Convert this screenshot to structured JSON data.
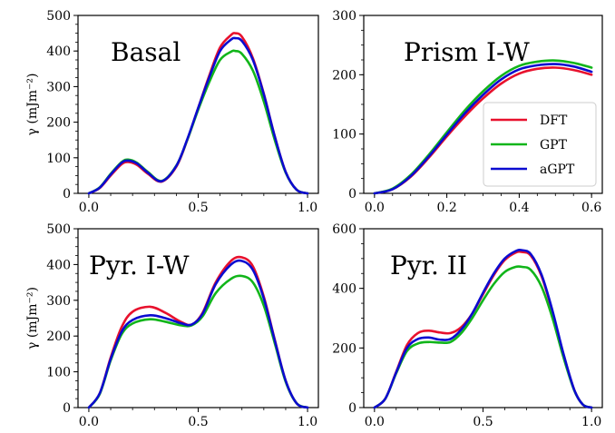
{
  "chart_data": [
    {
      "type": "line",
      "title": "Basal",
      "ylabel": "γ (mJm⁻²)",
      "xlim": [
        0,
        1.0
      ],
      "ylim": [
        0,
        500
      ],
      "xticks": [
        "0.0",
        "0.5",
        "1.0"
      ],
      "yticks": [
        "0",
        "100",
        "200",
        "300",
        "400",
        "500"
      ],
      "series": [
        {
          "name": "DFT",
          "color": "#e8112d",
          "x": [
            0,
            0.05,
            0.1,
            0.15,
            0.18,
            0.22,
            0.27,
            0.333,
            0.4,
            0.45,
            0.5,
            0.55,
            0.6,
            0.65,
            0.67,
            0.7,
            0.75,
            0.8,
            0.85,
            0.9,
            0.95,
            1.0
          ],
          "y": [
            0,
            15,
            50,
            82,
            88,
            80,
            55,
            33,
            75,
            150,
            240,
            330,
            410,
            445,
            450,
            440,
            380,
            280,
            160,
            60,
            10,
            0
          ]
        },
        {
          "name": "GPT",
          "color": "#11b51a",
          "x": [
            0,
            0.05,
            0.1,
            0.15,
            0.18,
            0.22,
            0.27,
            0.333,
            0.4,
            0.45,
            0.5,
            0.55,
            0.6,
            0.65,
            0.67,
            0.7,
            0.75,
            0.8,
            0.85,
            0.9,
            0.95,
            1.0
          ],
          "y": [
            0,
            17,
            55,
            88,
            95,
            86,
            60,
            35,
            78,
            150,
            235,
            312,
            375,
            398,
            400,
            392,
            345,
            258,
            150,
            58,
            10,
            0
          ]
        },
        {
          "name": "aGPT",
          "color": "#0b0bd0",
          "x": [
            0,
            0.05,
            0.1,
            0.15,
            0.18,
            0.22,
            0.27,
            0.333,
            0.4,
            0.45,
            0.5,
            0.55,
            0.6,
            0.65,
            0.67,
            0.7,
            0.75,
            0.8,
            0.85,
            0.9,
            0.95,
            1.0
          ],
          "y": [
            0,
            16,
            53,
            86,
            92,
            84,
            58,
            34,
            77,
            152,
            240,
            325,
            400,
            432,
            436,
            428,
            375,
            278,
            160,
            60,
            10,
            0
          ]
        }
      ]
    },
    {
      "type": "line",
      "title": "Prism I-W",
      "xlim": [
        0,
        0.6
      ],
      "ylim": [
        0,
        300
      ],
      "xticks": [
        "0.0",
        "0.2",
        "0.4",
        "0.6"
      ],
      "yticks": [
        "0",
        "100",
        "200",
        "300"
      ],
      "legend": {
        "position": "center-right",
        "entries": [
          "DFT",
          "GPT",
          "aGPT"
        ]
      },
      "series": [
        {
          "name": "DFT",
          "color": "#e8112d",
          "x": [
            0,
            0.05,
            0.1,
            0.15,
            0.2,
            0.25,
            0.3,
            0.35,
            0.4,
            0.45,
            0.5,
            0.55,
            0.6
          ],
          "y": [
            0,
            7,
            28,
            60,
            96,
            130,
            160,
            185,
            202,
            210,
            212,
            208,
            200
          ]
        },
        {
          "name": "GPT",
          "color": "#11b51a",
          "x": [
            0,
            0.05,
            0.1,
            0.15,
            0.2,
            0.25,
            0.3,
            0.35,
            0.4,
            0.45,
            0.5,
            0.55,
            0.6
          ],
          "y": [
            0,
            8,
            31,
            65,
            103,
            140,
            172,
            198,
            215,
            222,
            224,
            220,
            212
          ]
        },
        {
          "name": "aGPT",
          "color": "#0b0bd0",
          "x": [
            0,
            0.05,
            0.1,
            0.15,
            0.2,
            0.25,
            0.3,
            0.35,
            0.4,
            0.45,
            0.5,
            0.55,
            0.6
          ],
          "y": [
            0,
            7,
            29,
            62,
            99,
            135,
            166,
            192,
            209,
            216,
            218,
            214,
            205
          ]
        }
      ]
    },
    {
      "type": "line",
      "title": "Pyr. I-W",
      "ylabel": "γ (mJm⁻²)",
      "xlim": [
        0,
        1.0
      ],
      "ylim": [
        0,
        500
      ],
      "xticks": [
        "0.0",
        "0.5",
        "1.0"
      ],
      "yticks": [
        "0",
        "100",
        "200",
        "300",
        "400",
        "500"
      ],
      "series": [
        {
          "name": "DFT",
          "color": "#e8112d",
          "x": [
            0,
            0.05,
            0.1,
            0.15,
            0.2,
            0.28,
            0.35,
            0.42,
            0.47,
            0.52,
            0.58,
            0.65,
            0.7,
            0.75,
            0.8,
            0.85,
            0.9,
            0.95,
            1.0
          ],
          "y": [
            0,
            40,
            140,
            225,
            268,
            282,
            265,
            240,
            232,
            265,
            350,
            410,
            420,
            395,
            310,
            190,
            75,
            12,
            0
          ]
        },
        {
          "name": "GPT",
          "color": "#11b51a",
          "x": [
            0,
            0.05,
            0.1,
            0.15,
            0.2,
            0.28,
            0.35,
            0.42,
            0.47,
            0.52,
            0.58,
            0.65,
            0.7,
            0.75,
            0.8,
            0.85,
            0.9,
            0.95,
            1.0
          ],
          "y": [
            0,
            38,
            132,
            205,
            235,
            247,
            240,
            230,
            230,
            255,
            320,
            360,
            368,
            350,
            285,
            180,
            72,
            12,
            0
          ]
        },
        {
          "name": "aGPT",
          "color": "#0b0bd0",
          "x": [
            0,
            0.05,
            0.1,
            0.15,
            0.2,
            0.28,
            0.35,
            0.42,
            0.47,
            0.52,
            0.58,
            0.65,
            0.7,
            0.75,
            0.8,
            0.85,
            0.9,
            0.95,
            1.0
          ],
          "y": [
            0,
            40,
            136,
            212,
            245,
            258,
            250,
            236,
            232,
            262,
            345,
            400,
            410,
            385,
            305,
            188,
            75,
            12,
            0
          ]
        }
      ]
    },
    {
      "type": "line",
      "title": "Pyr. II",
      "xlim": [
        0,
        1.0
      ],
      "ylim": [
        0,
        600
      ],
      "xticks": [
        "0.0",
        "0.5",
        "1.0"
      ],
      "yticks": [
        "0",
        "200",
        "400",
        "600"
      ],
      "series": [
        {
          "name": "DFT",
          "color": "#e8112d",
          "x": [
            0,
            0.05,
            0.1,
            0.15,
            0.2,
            0.25,
            0.3,
            0.35,
            0.4,
            0.45,
            0.5,
            0.55,
            0.6,
            0.65,
            0.68,
            0.72,
            0.77,
            0.82,
            0.87,
            0.92,
            0.96,
            1.0
          ],
          "y": [
            0,
            30,
            120,
            210,
            250,
            258,
            252,
            250,
            270,
            315,
            380,
            445,
            495,
            520,
            522,
            510,
            440,
            320,
            180,
            60,
            10,
            0
          ]
        },
        {
          "name": "GPT",
          "color": "#11b51a",
          "x": [
            0,
            0.05,
            0.1,
            0.15,
            0.2,
            0.25,
            0.3,
            0.35,
            0.4,
            0.45,
            0.5,
            0.55,
            0.6,
            0.65,
            0.68,
            0.72,
            0.77,
            0.82,
            0.87,
            0.92,
            0.96,
            1.0
          ],
          "y": [
            0,
            30,
            115,
            190,
            215,
            220,
            218,
            220,
            250,
            300,
            360,
            415,
            455,
            472,
            472,
            462,
            405,
            300,
            170,
            58,
            10,
            0
          ]
        },
        {
          "name": "aGPT",
          "color": "#0b0bd0",
          "x": [
            0,
            0.05,
            0.1,
            0.15,
            0.2,
            0.25,
            0.3,
            0.35,
            0.4,
            0.45,
            0.5,
            0.55,
            0.6,
            0.65,
            0.68,
            0.72,
            0.77,
            0.82,
            0.87,
            0.92,
            0.96,
            1.0
          ],
          "y": [
            0,
            30,
            118,
            200,
            230,
            235,
            228,
            230,
            262,
            315,
            385,
            450,
            500,
            525,
            528,
            515,
            445,
            325,
            182,
            60,
            10,
            0
          ]
        }
      ]
    }
  ]
}
